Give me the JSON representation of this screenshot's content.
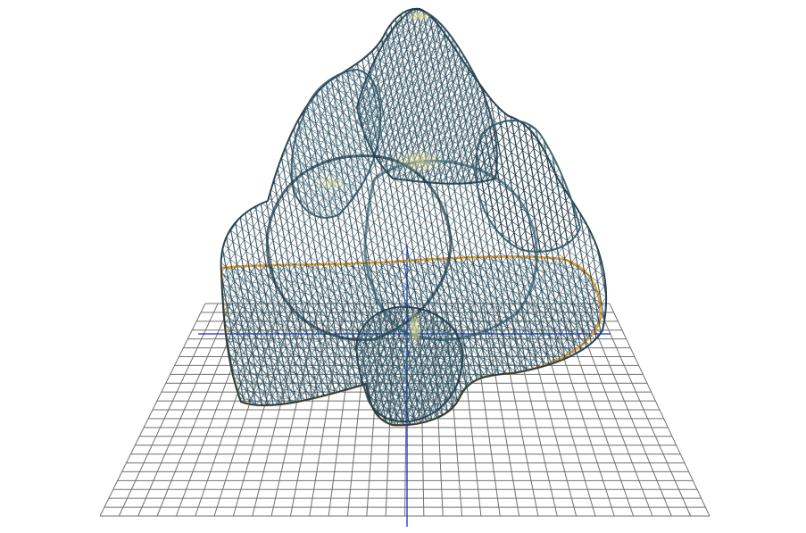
{
  "scene": {
    "description_visible_text": "",
    "colors": {
      "background": "#ffffff",
      "floor_grid": "#707070",
      "axis": "#1a2bd6",
      "mesh_dark": "#1f3b4a",
      "mesh_mid": "#3f6f7f",
      "mesh_light": "#8fb3a8",
      "rim": "#e8a030",
      "highlight": "#e7e29a"
    }
  }
}
